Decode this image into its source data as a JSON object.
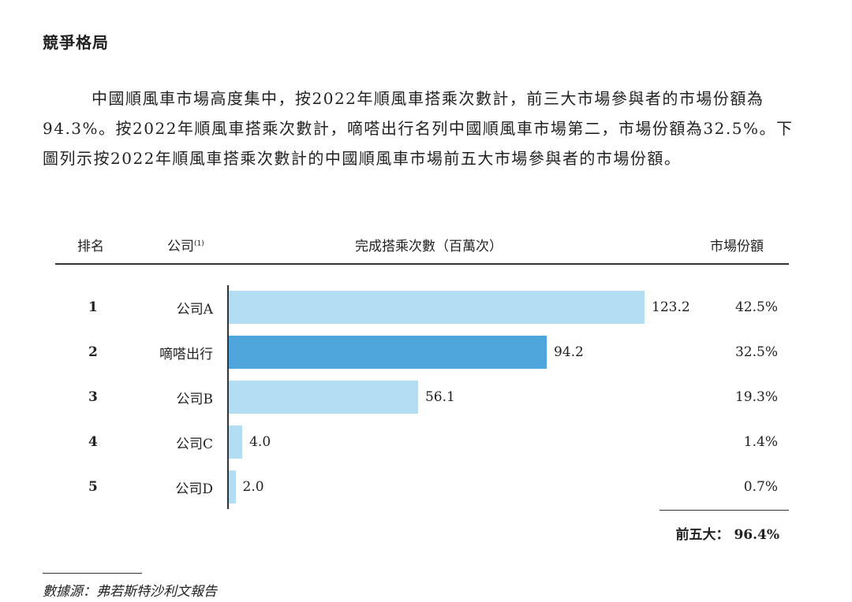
{
  "heading": "競爭格局",
  "paragraph": "中國順風車市場高度集中，按2022年順風車搭乘次數計，前三大市場參與者的市場份額為94.3%。按2022年順風車搭乘次數計，嘀嗒出行名列中國順風車市場第二，市場份額為32.5%。下圖列示按2022年順風車搭乘次數計的中國順風車市場前五大市場參與者的市場份額。",
  "table": {
    "headers": {
      "rank": "排名",
      "company": "公司",
      "company_note": "(1)",
      "rides": "完成搭乘次數（百萬次）",
      "share": "市場份額"
    },
    "total_label": "前五大：",
    "total_value": "96.4%"
  },
  "chart_data": {
    "type": "bar",
    "orientation": "horizontal",
    "categories": [
      "公司A",
      "嘀嗒出行",
      "公司B",
      "公司C",
      "公司D"
    ],
    "ranks": [
      "1",
      "2",
      "3",
      "4",
      "5"
    ],
    "values": [
      123.2,
      94.2,
      56.1,
      4.0,
      2.0
    ],
    "value_labels": [
      "123.2",
      "94.2",
      "56.1",
      "4.0",
      "2.0"
    ],
    "shares": [
      "42.5%",
      "32.5%",
      "19.3%",
      "1.4%",
      "0.7%"
    ],
    "xlabel": "完成搭乘次數（百萬次）",
    "highlight": "嘀嗒出行",
    "colors": {
      "default": "#b3ddf2",
      "highlight": "#4ea6dc"
    }
  },
  "source": "數據源：弗若斯特沙利文報告"
}
